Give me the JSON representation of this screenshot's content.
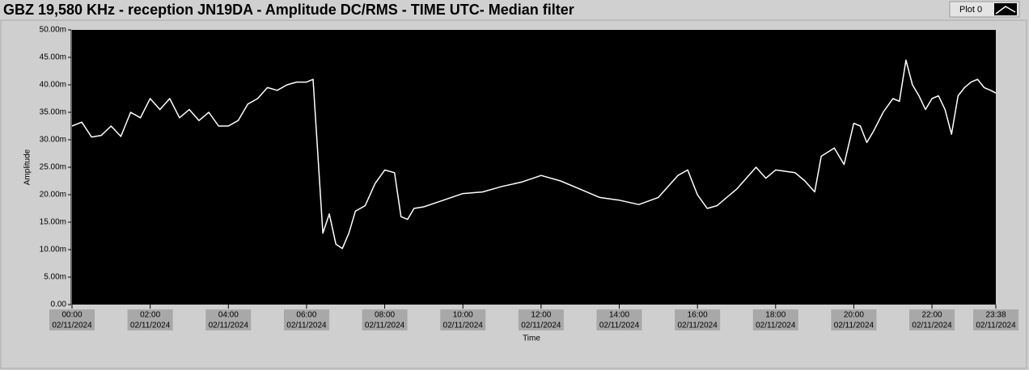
{
  "chart_data": {
    "type": "line",
    "title": "GBZ  19,580 KHz - reception JN19DA - Amplitude DC/RMS - TIME UTC- Median filter",
    "xlabel": "Time",
    "ylabel": "Amplitude",
    "xlim": [
      "00:00",
      "23:38"
    ],
    "xticks": [
      "00:00",
      "02:00",
      "04:00",
      "06:00",
      "08:00",
      "10:00",
      "12:00",
      "14:00",
      "16:00",
      "18:00",
      "20:00",
      "22:00",
      "23:38"
    ],
    "xtick_dates": [
      "02/11/2024",
      "02/11/2024",
      "02/11/2024",
      "02/11/2024",
      "02/11/2024",
      "02/11/2024",
      "02/11/2024",
      "02/11/2024",
      "02/11/2024",
      "02/11/2024",
      "02/11/2024",
      "02/11/2024",
      "02/11/2024"
    ],
    "ylim": [
      0,
      50
    ],
    "yticks": [
      {
        "value": 0,
        "label": "0.00"
      },
      {
        "value": 5,
        "label": "5.00m"
      },
      {
        "value": 10,
        "label": "10.00m"
      },
      {
        "value": 15,
        "label": "15.00m"
      },
      {
        "value": 20,
        "label": "20.00m"
      },
      {
        "value": 25,
        "label": "25.00m"
      },
      {
        "value": 30,
        "label": "30.00m"
      },
      {
        "value": 35,
        "label": "35.00m"
      },
      {
        "value": 40,
        "label": "40.00m"
      },
      {
        "value": 45,
        "label": "45.00m"
      },
      {
        "value": 50,
        "label": "50.00m"
      }
    ],
    "x": [
      "00:00",
      "00:15",
      "00:30",
      "00:45",
      "01:00",
      "01:15",
      "01:30",
      "01:45",
      "02:00",
      "02:15",
      "02:30",
      "02:45",
      "03:00",
      "03:15",
      "03:30",
      "03:45",
      "04:00",
      "04:15",
      "04:30",
      "04:45",
      "05:00",
      "05:15",
      "05:30",
      "05:45",
      "06:00",
      "06:10",
      "06:25",
      "06:35",
      "06:45",
      "06:55",
      "07:05",
      "07:15",
      "07:30",
      "07:45",
      "08:00",
      "08:15",
      "08:25",
      "08:35",
      "08:45",
      "09:00",
      "09:30",
      "10:00",
      "10:30",
      "11:00",
      "11:30",
      "12:00",
      "12:30",
      "13:00",
      "13:30",
      "14:00",
      "14:30",
      "15:00",
      "15:30",
      "15:45",
      "16:00",
      "16:15",
      "16:30",
      "17:00",
      "17:30",
      "17:45",
      "18:00",
      "18:30",
      "18:45",
      "19:00",
      "19:10",
      "19:30",
      "19:45",
      "20:00",
      "20:10",
      "20:20",
      "20:30",
      "20:45",
      "21:00",
      "21:10",
      "21:20",
      "21:30",
      "21:40",
      "21:50",
      "22:00",
      "22:10",
      "22:20",
      "22:30",
      "22:40",
      "22:50",
      "23:00",
      "23:10",
      "23:20",
      "23:30",
      "23:38"
    ],
    "series": [
      {
        "name": "Plot 0",
        "color": "#ffffff",
        "values": [
          32.5,
          33.2,
          30.5,
          30.8,
          32.5,
          30.6,
          35,
          34,
          37.5,
          35.5,
          37.5,
          34,
          35.5,
          33.5,
          35,
          32.5,
          32.5,
          33.5,
          36.5,
          37.5,
          39.5,
          39,
          40,
          40.5,
          40.5,
          41,
          13,
          16.5,
          11,
          10.2,
          13,
          17,
          18,
          22,
          24.5,
          24,
          16,
          15.5,
          17.5,
          17.8,
          19,
          20.2,
          20.5,
          21.5,
          22.3,
          23.5,
          22.5,
          21,
          19.5,
          19,
          18.2,
          19.5,
          23.5,
          24.5,
          20,
          17.5,
          18,
          21,
          25,
          23,
          24.5,
          24,
          22.5,
          20.5,
          27,
          28.5,
          25.5,
          33,
          32.5,
          29.5,
          31.5,
          35,
          37.5,
          37,
          44.5,
          40,
          38,
          35.5,
          37.5,
          38,
          35.5,
          31,
          38,
          39.5,
          40.5,
          41,
          39.5,
          39,
          38.5
        ]
      }
    ],
    "background": "#000000"
  }
}
